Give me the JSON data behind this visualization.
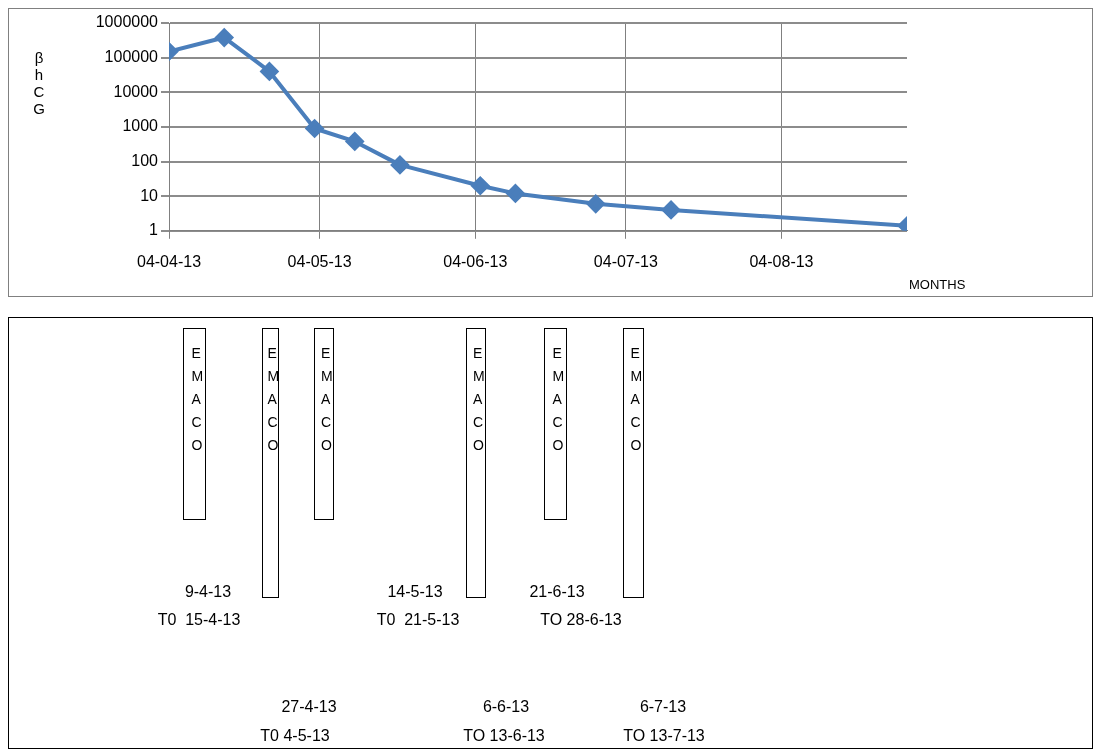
{
  "chart_data": [
    {
      "type": "line",
      "xlabel": "MONTHS",
      "ylabel": "βhCG",
      "x": [
        "2013-04-04",
        "2013-04-15",
        "2013-04-24",
        "2013-05-03",
        "2013-05-11",
        "2013-05-20",
        "2013-06-05",
        "2013-06-12",
        "2013-06-28",
        "2013-07-13",
        "2013-08-29"
      ],
      "series": [
        {
          "color": "#4a7ebb",
          "values": [
            150000,
            380000,
            40000,
            900,
            380,
            80,
            20,
            12,
            6,
            4,
            1.4
          ]
        }
      ],
      "xlim": [
        "2013-04-04",
        "2013-08-29"
      ],
      "xticks": [
        {
          "value": "2013-04-04",
          "label": "04-04-13"
        },
        {
          "value": "2013-05-04",
          "label": "04-05-13"
        },
        {
          "value": "2013-06-04",
          "label": "04-06-13"
        },
        {
          "value": "2013-07-04",
          "label": "04-07-13"
        },
        {
          "value": "2013-08-04",
          "label": "04-08-13"
        }
      ],
      "ylim": [
        1,
        1000000
      ],
      "yticks": [
        1,
        10,
        100,
        1000,
        10000,
        100000,
        1000000
      ],
      "log": "y",
      "grid": true,
      "legend": false,
      "marker": "diamond",
      "line_style": "solid"
    },
    {
      "type": "other",
      "annotations": [
        "EMACO",
        "EMACO",
        "EMACO",
        "EMACO",
        "EMACO",
        "EMACO",
        "9-4-13",
        "T0  15-4-13",
        "14-5-13",
        "T0  21-5-13",
        "21-6-13",
        "TO 28-6-13",
        "27-4-13",
        "T0 4-5-13",
        "6-6-13",
        "TO 13-6-13",
        "6-7-13",
        "TO 13-7-13"
      ]
    }
  ]
}
